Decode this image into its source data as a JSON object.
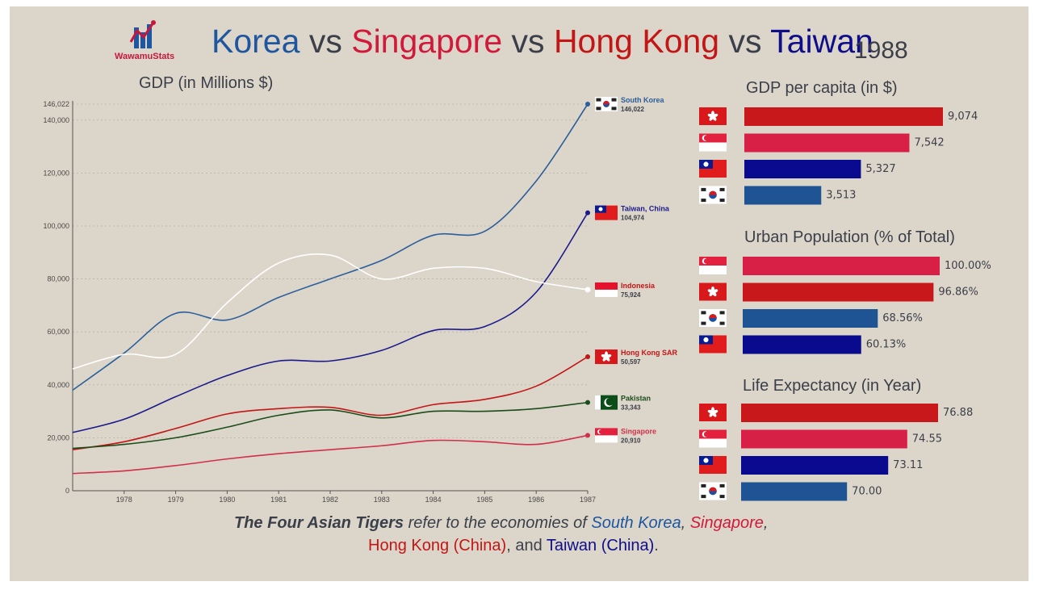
{
  "header": {
    "logo_text": "WawamuStats",
    "title_parts": [
      {
        "text": "Korea",
        "color": "#1f56a0"
      },
      {
        "text": " vs ",
        "color": "#3b3f4a"
      },
      {
        "text": "Singapore",
        "color": "#d11a3b"
      },
      {
        "text": " vs ",
        "color": "#3b3f4a"
      },
      {
        "text": "Hong Kong",
        "color": "#c31616"
      },
      {
        "text": " vs ",
        "color": "#3b3f4a"
      },
      {
        "text": "Taiwan",
        "color": "#0e0e8a"
      }
    ],
    "year": "1988"
  },
  "footer": {
    "line1": [
      {
        "text": "The Four Asian Tigers",
        "color": "#3b3f4a",
        "bold": true
      },
      {
        "text": " refer to the economies of ",
        "color": "#3b3f4a",
        "bold": false
      },
      {
        "text": "South Korea",
        "color": "#1f56a0",
        "bold": false
      },
      {
        "text": ", ",
        "color": "#3b3f4a",
        "bold": false
      },
      {
        "text": "Singapore",
        "color": "#d11a3b",
        "bold": false
      },
      {
        "text": ",",
        "color": "#3b3f4a",
        "bold": false
      }
    ],
    "line2": [
      {
        "text": "Hong Kong (China)",
        "color": "#c31616"
      },
      {
        "text": ", and ",
        "color": "#3b3f4a"
      },
      {
        "text": "Taiwan (China)",
        "color": "#0e0e8a"
      },
      {
        "text": ".",
        "color": "#3b3f4a"
      }
    ]
  },
  "chart_data": [
    {
      "type": "line",
      "title": "GDP (in Millions $)",
      "x": [
        1977,
        1978,
        1979,
        1980,
        1981,
        1982,
        1983,
        1984,
        1985,
        1986,
        1987
      ],
      "x_ticks": [
        "1978",
        "1979",
        "1980",
        "1981",
        "1982",
        "1983",
        "1984",
        "1985",
        "1986",
        "1987"
      ],
      "y_ticks": [
        "0",
        "20,000",
        "40,000",
        "60,000",
        "80,000",
        "100,000",
        "120,000",
        "140,000"
      ],
      "top_label": "146,022",
      "ylim": [
        0,
        146022
      ],
      "grid": true,
      "series": [
        {
          "name": "South Korea",
          "end_label": "146,022",
          "color": "#2b5e9c",
          "values": [
            38000,
            52000,
            67000,
            64500,
            73000,
            80000,
            87000,
            96500,
            98000,
            117000,
            146022
          ]
        },
        {
          "name": "Taiwan, China",
          "end_label": "104,974",
          "color": "#1a1a8c",
          "values": [
            22000,
            27000,
            35500,
            43500,
            49000,
            49000,
            53000,
            60500,
            62000,
            75000,
            104974
          ]
        },
        {
          "name": "Indonesia",
          "end_label": "75,924",
          "color": "#ffffff",
          "values": [
            46000,
            51500,
            51500,
            71000,
            86000,
            89000,
            80000,
            84000,
            84000,
            79000,
            75924
          ]
        },
        {
          "name": "Hong Kong SAR",
          "end_label": "50,597",
          "color": "#c31616",
          "values": [
            15500,
            18500,
            23500,
            29000,
            31000,
            31500,
            28500,
            32500,
            34500,
            39500,
            50597
          ]
        },
        {
          "name": "Pakistan",
          "end_label": "33,343",
          "color": "#1b4d1b",
          "values": [
            16000,
            17500,
            20000,
            24000,
            28500,
            30500,
            27500,
            30000,
            30000,
            31000,
            33343
          ]
        },
        {
          "name": "Singapore",
          "end_label": "20,910",
          "color": "#d0304a",
          "values": [
            6500,
            7500,
            9500,
            12000,
            14000,
            15500,
            17000,
            19000,
            18500,
            17500,
            20910
          ]
        }
      ]
    },
    {
      "type": "bar",
      "title": "GDP per capita (in $)",
      "categories": [
        "Hong Kong",
        "Singapore",
        "Taiwan",
        "South Korea"
      ],
      "values": [
        9074,
        7542,
        5327,
        3513
      ],
      "labels": [
        "9,074",
        "7,542",
        "5,327",
        "3,513"
      ],
      "flags": [
        "hk",
        "sg",
        "tw",
        "kr"
      ],
      "colors": [
        "#c8181b",
        "#d81f45",
        "#0a0a8f",
        "#1f5494"
      ],
      "xmax": 9074
    },
    {
      "type": "bar",
      "title": "Urban Population (% of Total)",
      "categories": [
        "Singapore",
        "Hong Kong",
        "South Korea",
        "Taiwan"
      ],
      "values": [
        100.0,
        96.86,
        68.56,
        60.13
      ],
      "labels": [
        "100.00%",
        "96.86%",
        "68.56%",
        "60.13%"
      ],
      "flags": [
        "sg",
        "hk",
        "kr",
        "tw"
      ],
      "colors": [
        "#d81f45",
        "#c8181b",
        "#1f5494",
        "#0a0a8f"
      ],
      "xmax": 100
    },
    {
      "type": "bar",
      "title": "Life Expectancy (in Year)",
      "categories": [
        "Hong Kong",
        "Singapore",
        "Taiwan",
        "South Korea"
      ],
      "values": [
        76.88,
        74.55,
        73.11,
        70.0
      ],
      "labels": [
        "76.88",
        "74.55",
        "73.11",
        "70.00"
      ],
      "flags": [
        "hk",
        "sg",
        "tw",
        "kr"
      ],
      "colors": [
        "#c8181b",
        "#d81f45",
        "#0a0a8f",
        "#1f5494"
      ],
      "xmin": 62,
      "xmax": 76.88
    }
  ]
}
